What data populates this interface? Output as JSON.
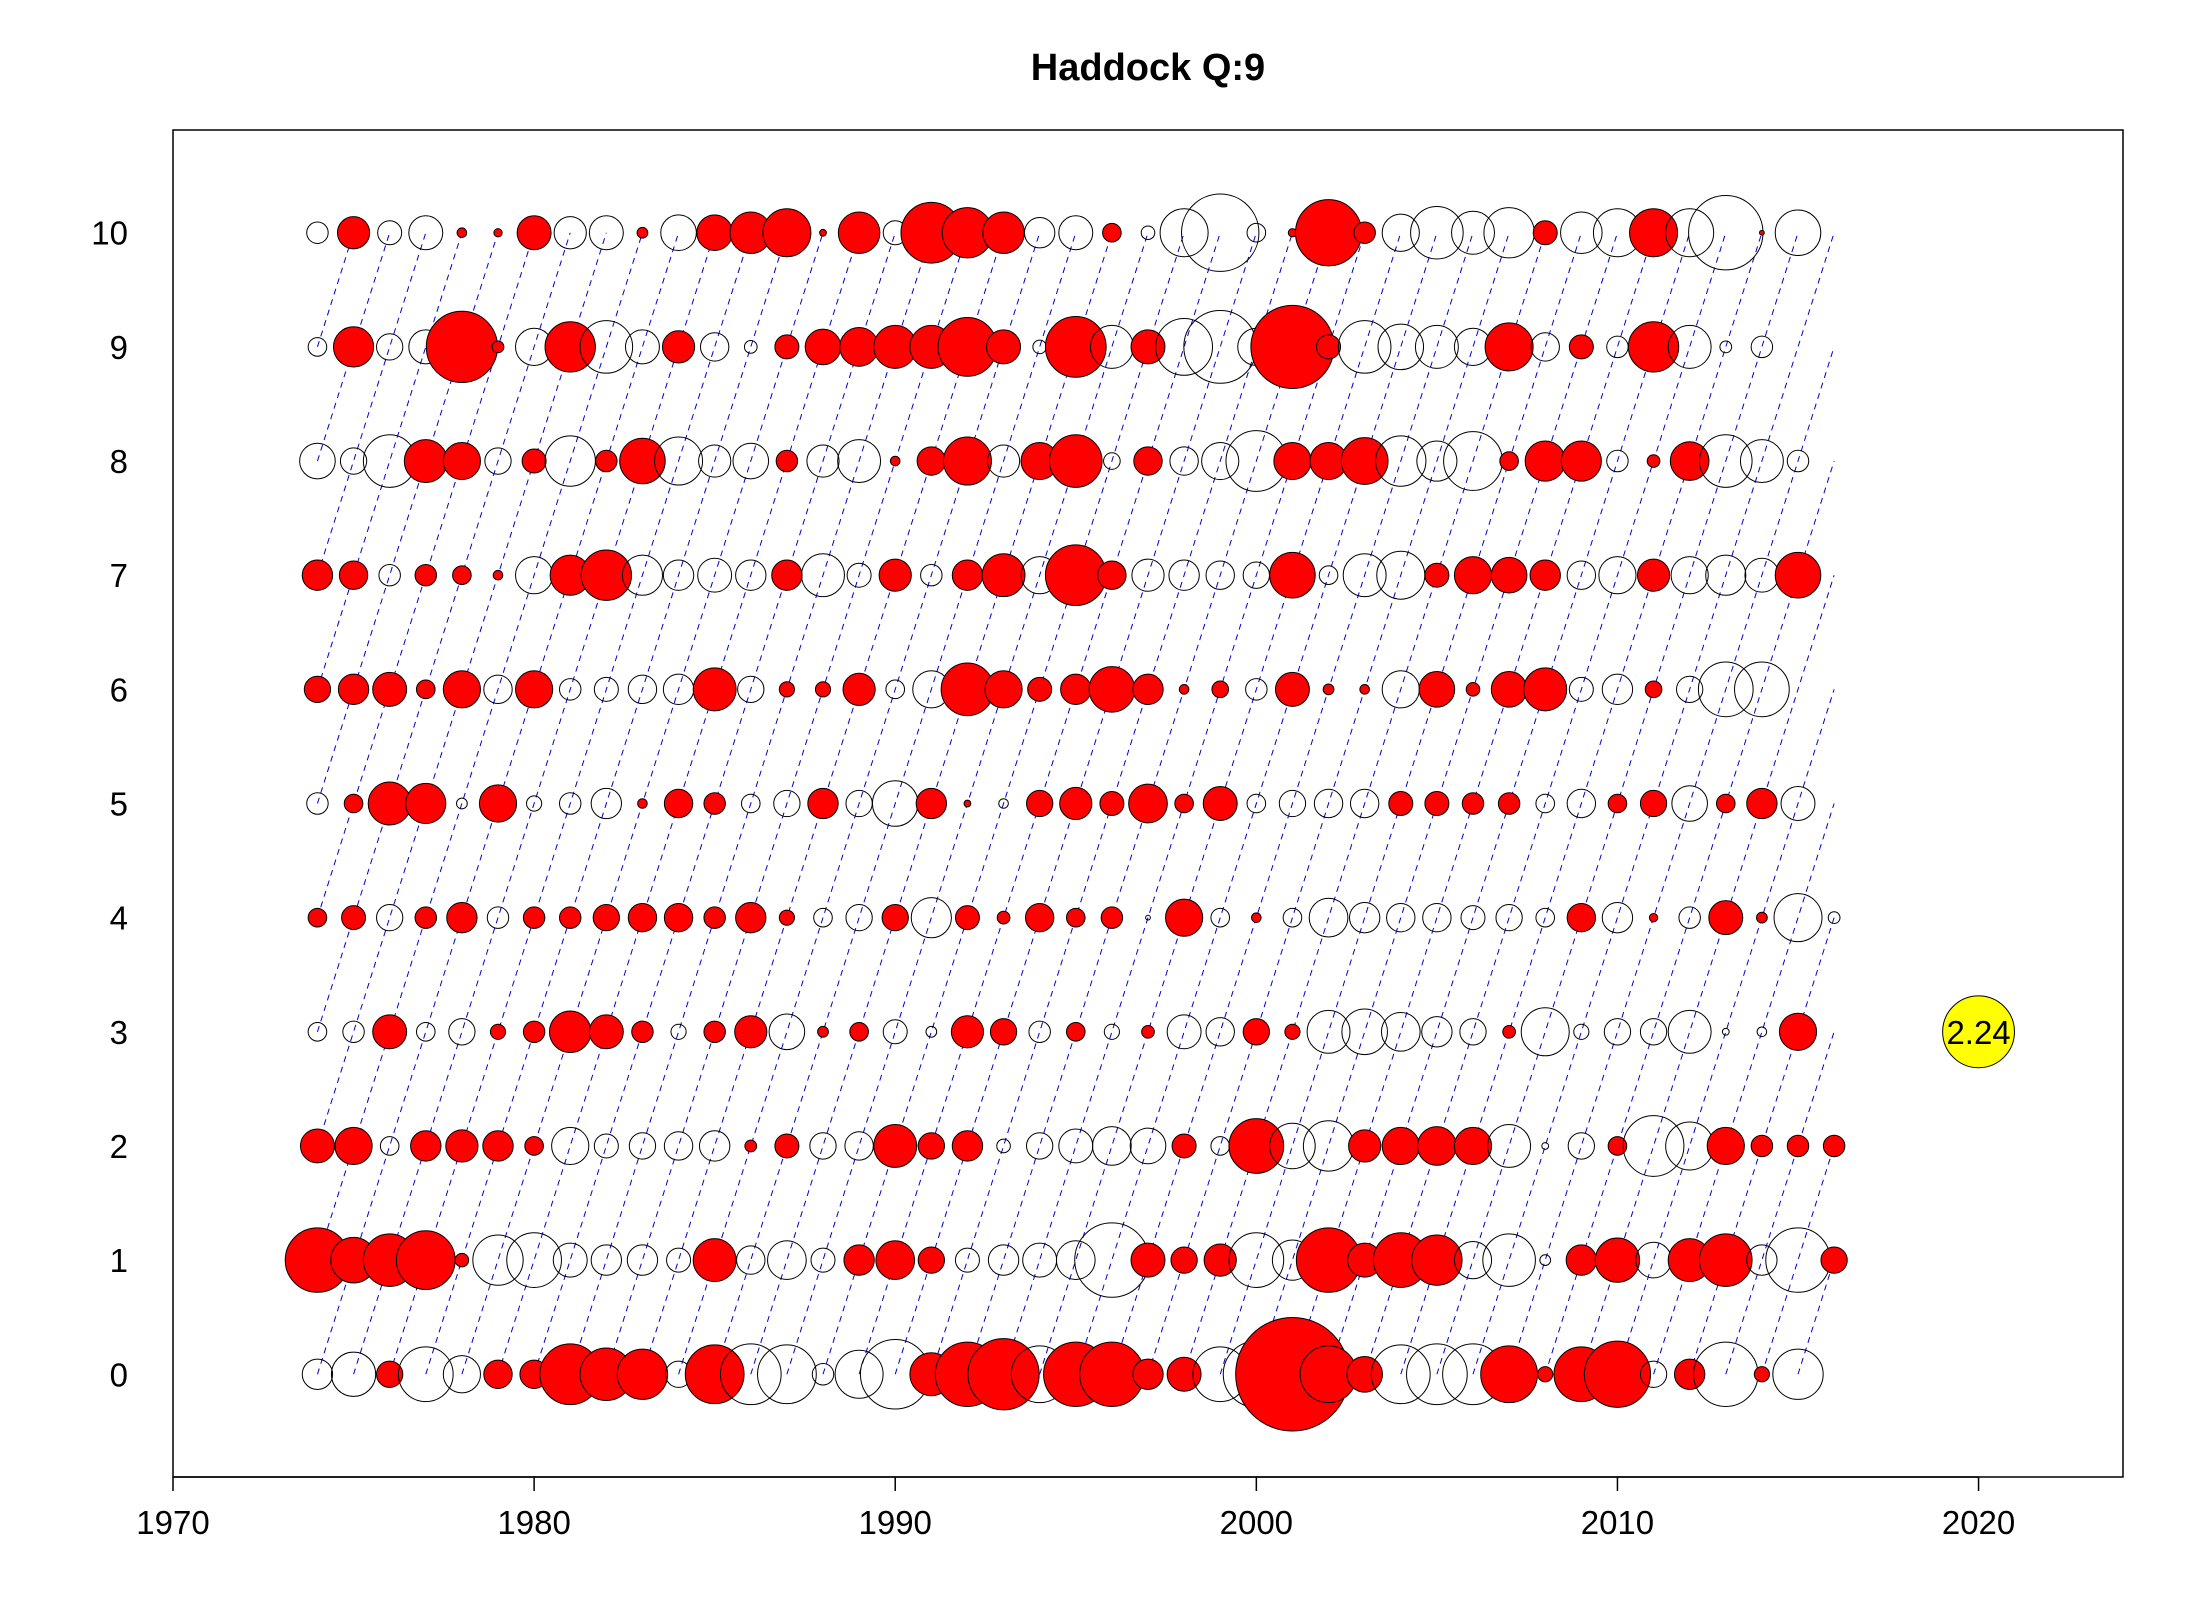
{
  "chart_data": {
    "type": "bubble",
    "title": "Haddock Q:9",
    "xlabel": "",
    "ylabel": "",
    "xlim": [
      1970,
      2024
    ],
    "ylim": [
      -0.9,
      10.9
    ],
    "x_ticks": [
      1970,
      1980,
      1990,
      2000,
      2010,
      2020
    ],
    "y_ticks": [
      0,
      1,
      2,
      3,
      4,
      5,
      6,
      7,
      8,
      9,
      10
    ],
    "grid": false,
    "years": [
      1974,
      2016
    ],
    "colors": {
      "positive": "#FF0000",
      "negative": "#FFFFFF",
      "cohort_line": "#0000CC",
      "reference": "#FFFF00"
    },
    "encoding": "filled red = positive residual, open = negative residual; circle area proportional to |residual|; dashed blue lines join cohorts",
    "reference_bubble": {
      "x": 2020,
      "y": 3,
      "value": 2.24,
      "label": "2.24"
    },
    "residuals": {
      "0": [
        -0.4,
        -0.85,
        0.3,
        -1.3,
        -0.6,
        0.35,
        0.35,
        1.6,
        1.2,
        1.1,
        -0.3,
        1.5,
        -1.6,
        -1.5,
        -0.2,
        -1.0,
        -2.1,
        0.8,
        1.8,
        2.2,
        -1.4,
        1.8,
        1.8,
        0.4,
        0.5,
        -1.3,
        -1.9,
        5.6,
        1.4,
        0.55,
        -1.5,
        -1.6,
        -1.6,
        1.4,
        0.1,
        1.3,
        1.9,
        -0.3,
        0.4,
        -1.8,
        0.1,
        -1.1
      ],
      "1": [
        1.8,
        0.9,
        1.2,
        1.5,
        0.08,
        -1.1,
        -1.3,
        -0.5,
        -0.4,
        -0.4,
        -0.25,
        0.8,
        -0.35,
        -0.65,
        -0.25,
        0.4,
        0.65,
        0.3,
        -0.25,
        -0.4,
        -0.5,
        -0.65,
        -2.4,
        0.5,
        0.3,
        0.45,
        -1.3,
        -0.7,
        1.8,
        0.5,
        1.3,
        1.1,
        -0.6,
        -1.2,
        -0.05,
        0.4,
        0.85,
        -0.55,
        0.8,
        1.2,
        -0.4,
        -1.8,
        0.3
      ],
      "2": [
        0.5,
        0.6,
        -0.15,
        0.4,
        0.45,
        0.4,
        0.15,
        -0.6,
        -0.25,
        -0.3,
        -0.35,
        -0.4,
        0.06,
        0.25,
        -0.3,
        -0.35,
        0.8,
        0.3,
        0.4,
        -0.08,
        -0.3,
        -0.5,
        -0.65,
        -0.55,
        0.25,
        -0.15,
        1.3,
        -0.9,
        -1.1,
        0.45,
        0.6,
        0.65,
        0.6,
        -0.8,
        -0.02,
        -0.3,
        0.15,
        -1.6,
        -1.0,
        0.6,
        0.2,
        0.2,
        0.2
      ],
      "3": [
        -0.15,
        -0.2,
        0.5,
        -0.15,
        -0.3,
        0.1,
        0.2,
        0.75,
        0.5,
        0.2,
        -0.1,
        0.2,
        0.45,
        -0.55,
        0.05,
        0.15,
        -0.25,
        -0.05,
        0.45,
        0.3,
        -0.2,
        0.15,
        -0.1,
        0.07,
        -0.5,
        -0.35,
        0.3,
        0.1,
        -0.8,
        -0.9,
        -0.65,
        -0.4,
        -0.3,
        0.07,
        -1.0,
        -0.1,
        -0.3,
        -0.3,
        -0.8,
        -0.02,
        -0.04,
        0.6
      ],
      "4": [
        0.15,
        0.25,
        -0.3,
        0.2,
        0.4,
        -0.2,
        0.2,
        0.2,
        0.3,
        0.35,
        0.35,
        0.2,
        0.4,
        0.1,
        -0.15,
        -0.3,
        0.3,
        -0.7,
        0.25,
        0.07,
        0.35,
        0.15,
        0.2,
        -0.01,
        0.6,
        -0.15,
        0.04,
        -0.15,
        -0.65,
        -0.4,
        -0.35,
        -0.35,
        -0.25,
        -0.3,
        -0.15,
        0.35,
        -0.4,
        0.03,
        -0.2,
        0.5,
        0.05,
        -1.0,
        -0.06
      ],
      "5": [
        -0.2,
        0.15,
        0.8,
        0.7,
        -0.05,
        0.6,
        -0.1,
        -0.2,
        -0.4,
        0.04,
        0.35,
        0.2,
        -0.15,
        -0.3,
        0.4,
        -0.3,
        -0.9,
        0.4,
        0.02,
        -0.04,
        0.3,
        0.45,
        0.25,
        0.65,
        0.15,
        0.5,
        -0.15,
        -0.3,
        -0.35,
        -0.35,
        0.25,
        0.25,
        0.2,
        0.2,
        -0.15,
        -0.35,
        0.15,
        0.3,
        -0.55,
        0.15,
        0.4,
        -0.5
      ],
      "6": [
        0.3,
        0.4,
        0.5,
        0.15,
        0.6,
        -0.35,
        0.6,
        -0.2,
        -0.25,
        -0.35,
        -0.4,
        0.8,
        -0.3,
        0.1,
        0.1,
        0.45,
        -0.15,
        -0.6,
        1.2,
        0.6,
        0.25,
        0.4,
        0.9,
        0.4,
        0.04,
        0.12,
        -0.2,
        0.5,
        0.05,
        0.04,
        -0.6,
        0.55,
        0.08,
        0.55,
        0.8,
        -0.25,
        -0.4,
        0.12,
        -0.3,
        -1.3,
        -1.3
      ],
      "7": [
        0.4,
        0.35,
        -0.2,
        0.2,
        0.15,
        0.04,
        -0.6,
        0.7,
        1.1,
        -0.7,
        -0.4,
        -0.5,
        -0.4,
        0.4,
        -0.8,
        -0.25,
        0.45,
        -0.2,
        0.4,
        0.8,
        -0.6,
        1.6,
        0.35,
        -0.45,
        -0.4,
        -0.35,
        -0.3,
        0.9,
        -0.15,
        -0.8,
        -1.0,
        0.25,
        0.6,
        0.55,
        0.4,
        -0.35,
        -0.6,
        0.45,
        -0.6,
        -0.7,
        -0.5,
        0.9
      ],
      "8": [
        -0.55,
        -0.3,
        -1.2,
        0.8,
        0.6,
        -0.3,
        0.25,
        -1.1,
        0.2,
        0.9,
        -1.0,
        -0.45,
        -0.55,
        0.2,
        -0.45,
        -0.8,
        0.04,
        0.35,
        1.0,
        -0.45,
        0.6,
        1.2,
        -0.12,
        0.35,
        -0.35,
        -0.6,
        -1.6,
        0.6,
        0.6,
        0.95,
        -1.1,
        -0.7,
        -1.5,
        0.15,
        0.7,
        0.7,
        -0.2,
        0.07,
        0.65,
        -1.2,
        -0.8,
        -0.2
      ],
      "9": [
        -0.15,
        0.7,
        -0.3,
        -0.5,
        2.2,
        0.06,
        -0.6,
        1.1,
        -1.2,
        -0.5,
        0.45,
        -0.35,
        -0.07,
        0.25,
        0.55,
        0.65,
        0.8,
        0.8,
        1.5,
        0.5,
        -0.08,
        1.6,
        -0.8,
        0.5,
        -1.4,
        -2.3,
        -0.6,
        3.0,
        0.25,
        -1.2,
        -0.9,
        -0.8,
        -0.6,
        1.0,
        -0.35,
        0.25,
        -0.2,
        1.1,
        -0.8,
        -0.06,
        -0.2
      ],
      "10": [
        -0.2,
        0.45,
        -0.25,
        -0.5,
        0.04,
        0.03,
        0.5,
        -0.45,
        -0.5,
        0.05,
        -0.55,
        0.55,
        0.75,
        1.0,
        0.02,
        0.75,
        -0.25,
        1.6,
        1.1,
        0.75,
        -0.4,
        -0.5,
        0.15,
        -0.08,
        -1.0,
        -2.6,
        -0.15,
        0.03,
        1.9,
        0.2,
        -0.6,
        -1.2,
        -0.8,
        -1.1,
        0.25,
        -0.75,
        -1.0,
        1.0,
        -1.0,
        -2.4,
        0.01,
        -0.9
      ]
    }
  }
}
